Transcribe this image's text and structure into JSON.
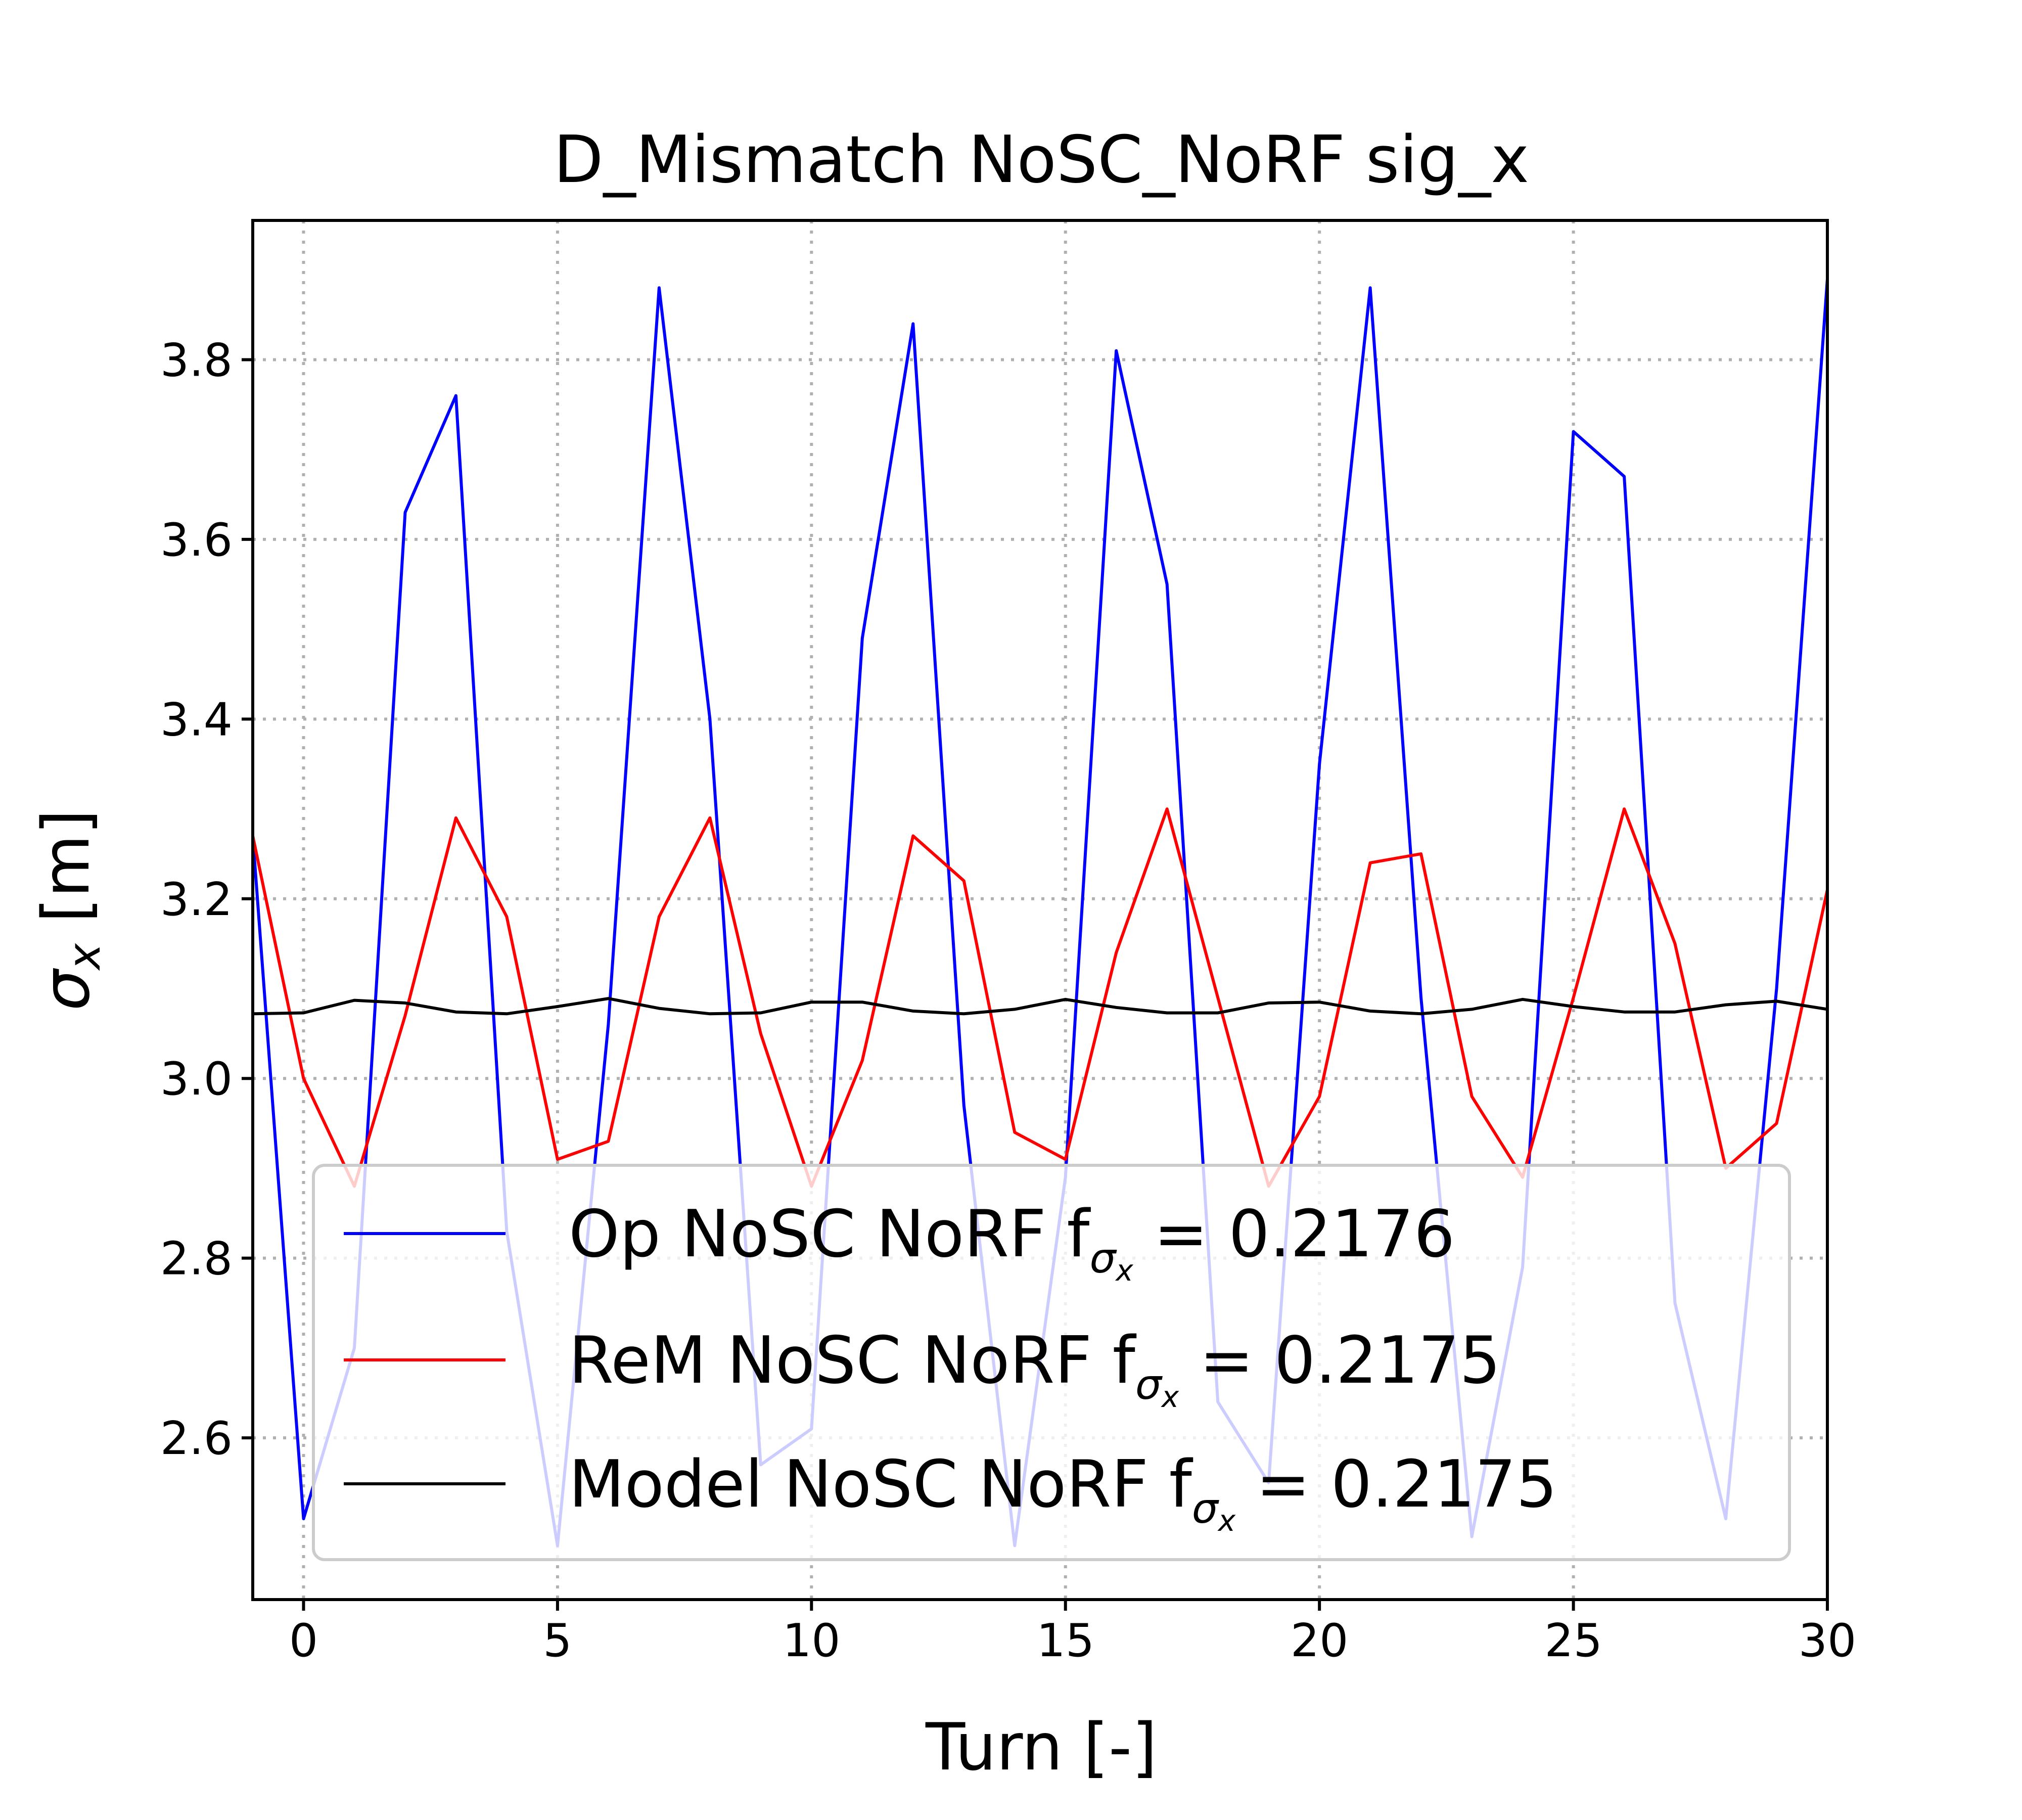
{
  "chart_data": {
    "type": "line",
    "title": "D_Mismatch NoSC_NoRF sig_x",
    "xlabel": "Turn [-]",
    "ylabel_symbol": "σ",
    "ylabel_sub": "x",
    "ylabel_unit": " [m]",
    "xlim": [
      -1,
      30
    ],
    "ylim": [
      2.42,
      3.955
    ],
    "xticks": [
      0,
      5,
      10,
      15,
      20,
      25,
      30
    ],
    "yticks": [
      2.6,
      2.8,
      3.0,
      3.2,
      3.4,
      3.6,
      3.8
    ],
    "grid": true,
    "legend_position": "lower-center",
    "x": [
      -1,
      0,
      1,
      2,
      3,
      4,
      5,
      6,
      7,
      8,
      9,
      10,
      11,
      12,
      13,
      14,
      15,
      16,
      17,
      18,
      19,
      20,
      21,
      22,
      23,
      24,
      25,
      26,
      27,
      28,
      29,
      30
    ],
    "series": [
      {
        "name": "Op NoSC NoRF",
        "metric_label": "f",
        "metric_sub": "σ",
        "metric_subsub": "x",
        "metric_value": "= 0.2176",
        "color": "#0000ff",
        "values": [
          3.27,
          2.51,
          2.7,
          3.63,
          3.76,
          2.83,
          2.48,
          3.06,
          3.88,
          3.4,
          2.57,
          2.61,
          3.49,
          3.84,
          2.97,
          2.48,
          2.89,
          3.81,
          3.55,
          2.64,
          2.55,
          3.35,
          3.88,
          3.09,
          2.49,
          2.79,
          3.72,
          3.67,
          2.75,
          2.51,
          3.1,
          3.89
        ]
      },
      {
        "name": "ReM NoSC NoRF",
        "metric_label": "f",
        "metric_sub": "σ",
        "metric_subsub": "x",
        "metric_value": "= 0.2175",
        "color": "#ff0000",
        "values": [
          3.27,
          3.0,
          2.88,
          3.07,
          3.29,
          3.18,
          2.91,
          2.93,
          3.18,
          3.29,
          3.05,
          2.88,
          3.02,
          3.27,
          3.22,
          2.94,
          2.91,
          3.14,
          3.3,
          3.09,
          2.88,
          2.98,
          3.24,
          3.25,
          2.98,
          2.89,
          3.09,
          3.3,
          3.15,
          2.9,
          2.95,
          3.21
        ]
      },
      {
        "name": "Model NoSC NoRF",
        "metric_label": "f",
        "metric_sub": "σ",
        "metric_subsub": "x",
        "metric_value": "= 0.2175",
        "color": "#000000",
        "values": [
          3.072,
          3.073,
          3.087,
          3.084,
          3.074,
          3.072,
          3.08,
          3.089,
          3.078,
          3.072,
          3.073,
          3.085,
          3.085,
          3.075,
          3.072,
          3.077,
          3.088,
          3.079,
          3.073,
          3.073,
          3.084,
          3.085,
          3.075,
          3.072,
          3.077,
          3.088,
          3.08,
          3.074,
          3.074,
          3.082,
          3.086,
          3.077
        ]
      }
    ]
  }
}
